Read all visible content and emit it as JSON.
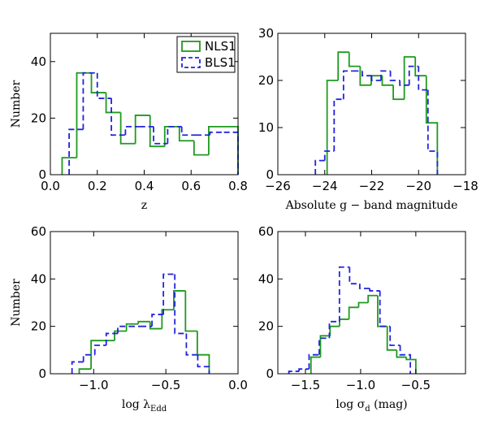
{
  "chart_data": [
    {
      "type": "histogram",
      "xlabel": {
        "text": "z"
      },
      "ylabel": "Number",
      "xlim": [
        0,
        0.8
      ],
      "ylim": [
        0,
        50
      ],
      "xticks": [
        {
          "value": 0,
          "label": "0.0"
        },
        {
          "value": 0.2,
          "label": "0.2"
        },
        {
          "value": 0.4,
          "label": "0.4"
        },
        {
          "value": 0.6,
          "label": "0.6"
        },
        {
          "value": 0.8,
          "label": "0.8"
        }
      ],
      "yticks": [
        0,
        20,
        40
      ],
      "legend": "upper right",
      "series": [
        {
          "name": "NLS1",
          "color": "#1f9a1f",
          "dash": false,
          "bins": [
            0.05,
            0.1125,
            0.175,
            0.2375,
            0.3,
            0.3625,
            0.425,
            0.4875,
            0.55,
            0.6125,
            0.675,
            0.7375,
            0.8
          ],
          "values": [
            6,
            36,
            29,
            22,
            11,
            21,
            10,
            17,
            12,
            7,
            17,
            17
          ]
        },
        {
          "name": "BLS1",
          "color": "#2323e0",
          "dash": true,
          "bins": [
            0.08,
            0.14,
            0.2,
            0.26,
            0.32,
            0.38,
            0.44,
            0.5,
            0.56,
            0.62,
            0.68,
            0.74,
            0.8
          ],
          "values": [
            16,
            36,
            27,
            14,
            17,
            17,
            11,
            17,
            14,
            14,
            15,
            15
          ]
        }
      ]
    },
    {
      "type": "histogram",
      "xlabel": {
        "text": "Absolute g − band magnitude"
      },
      "xlim": [
        -26,
        -18
      ],
      "ylim": [
        0,
        30
      ],
      "xticks": [
        {
          "value": -26,
          "label": "−26"
        },
        {
          "value": -24,
          "label": "−24"
        },
        {
          "value": -22,
          "label": "−22"
        },
        {
          "value": -20,
          "label": "−20"
        },
        {
          "value": -18,
          "label": "−18"
        }
      ],
      "yticks": [
        0,
        10,
        20,
        30
      ],
      "series": [
        {
          "name": "NLS1",
          "color": "#1f9a1f",
          "dash": false,
          "bins": [
            -23.9,
            -23.43,
            -22.96,
            -22.49,
            -22.02,
            -21.55,
            -21.08,
            -20.61,
            -20.14,
            -19.67,
            -19.2
          ],
          "values": [
            20,
            26,
            23,
            19,
            21,
            19,
            16,
            25,
            21,
            11
          ]
        },
        {
          "name": "BLS1",
          "color": "#2323e0",
          "dash": true,
          "bins": [
            -24.4,
            -24.0,
            -23.6,
            -23.2,
            -22.8,
            -22.4,
            -22.0,
            -21.6,
            -21.2,
            -20.8,
            -20.4,
            -20.0,
            -19.6,
            -19.2
          ],
          "values": [
            3,
            5,
            16,
            22,
            22,
            21,
            20,
            22,
            20,
            19,
            23,
            18,
            5
          ]
        }
      ]
    },
    {
      "type": "histogram",
      "xlabel": {
        "text": "log λ",
        "sub": "Edd"
      },
      "ylabel": "Number",
      "xlim": [
        -1.3,
        0
      ],
      "ylim": [
        0,
        60
      ],
      "xticks": [
        {
          "value": -1,
          "label": "−1.0"
        },
        {
          "value": -0.5,
          "label": "−0.5"
        },
        {
          "value": 0,
          "label": "0.0"
        }
      ],
      "yticks": [
        0,
        20,
        40,
        60
      ],
      "series": [
        {
          "name": "NLS1",
          "color": "#1f9a1f",
          "dash": false,
          "bins": [
            -1.1,
            -1.018,
            -0.936,
            -0.855,
            -0.773,
            -0.691,
            -0.609,
            -0.527,
            -0.445,
            -0.364,
            -0.282,
            -0.2
          ],
          "values": [
            2,
            14,
            14,
            18,
            21,
            22,
            19,
            27,
            35,
            18,
            8
          ]
        },
        {
          "name": "BLS1",
          "color": "#2323e0",
          "dash": true,
          "bins": [
            -1.15,
            -1.071,
            -0.992,
            -0.913,
            -0.833,
            -0.754,
            -0.675,
            -0.596,
            -0.517,
            -0.438,
            -0.358,
            -0.279,
            -0.2
          ],
          "values": [
            5,
            8,
            12,
            17,
            20,
            20,
            20,
            25,
            42,
            17,
            8,
            3
          ]
        }
      ]
    },
    {
      "type": "histogram",
      "xlabel": {
        "text": "log σ",
        "sub": "d",
        "after": " (mag)"
      },
      "xlim": [
        -1.75,
        -0.05
      ],
      "ylim": [
        0,
        60
      ],
      "xticks": [
        {
          "value": -1.5,
          "label": "−1.5"
        },
        {
          "value": -1,
          "label": "−1.0"
        },
        {
          "value": -0.5,
          "label": "−0.5"
        }
      ],
      "yticks": [
        0,
        20,
        40,
        60
      ],
      "series": [
        {
          "name": "NLS1",
          "color": "#1f9a1f",
          "dash": false,
          "bins": [
            -1.45,
            -1.364,
            -1.277,
            -1.191,
            -1.105,
            -1.018,
            -0.932,
            -0.845,
            -0.759,
            -0.673,
            -0.586,
            -0.5
          ],
          "values": [
            7,
            16,
            20,
            23,
            28,
            30,
            33,
            20,
            10,
            7,
            6
          ]
        },
        {
          "name": "BLS1",
          "color": "#2323e0",
          "dash": true,
          "bins": [
            -1.65,
            -1.558,
            -1.467,
            -1.375,
            -1.283,
            -1.192,
            -1.1,
            -1.008,
            -0.917,
            -0.825,
            -0.733,
            -0.642,
            -0.55
          ],
          "values": [
            1,
            2,
            8,
            15,
            22,
            45,
            38,
            36,
            35,
            20,
            12,
            8
          ]
        }
      ]
    }
  ]
}
